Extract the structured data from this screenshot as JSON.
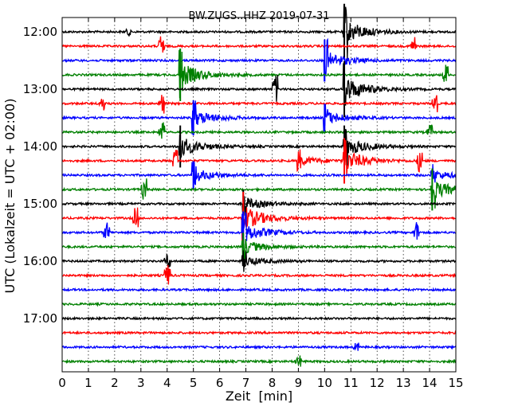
{
  "chart_data": {
    "type": "line",
    "title": "BW.ZUGS..HHZ 2019-07-31",
    "xlabel": "Zeit  [min]",
    "ylabel": "UTC (Lokalzeit = UTC + 02:00)",
    "xlim": [
      0,
      15
    ],
    "x_ticks": [
      "0",
      "1",
      "2",
      "3",
      "4",
      "5",
      "6",
      "7",
      "8",
      "9",
      "10",
      "11",
      "12",
      "13",
      "14",
      "15"
    ],
    "y_ticks": [
      "12:00",
      "13:00",
      "14:00",
      "15:00",
      "16:00",
      "17:00"
    ],
    "grid": true,
    "row_interval_minutes": 15,
    "start_time": "12:00",
    "trace_color_cycle": [
      "#000000",
      "#ff0000",
      "#0000ff",
      "#008000"
    ],
    "traces": [
      {
        "start": "12:00",
        "events": [
          {
            "t": 10.75,
            "amp": 1.6
          },
          {
            "t": 2.5,
            "amp": 0.1
          }
        ]
      },
      {
        "start": "12:15",
        "events": [
          {
            "t": 3.8,
            "amp": 0.35
          },
          {
            "t": 13.4,
            "amp": 0.3
          }
        ]
      },
      {
        "start": "12:30",
        "events": [
          {
            "t": 10.0,
            "amp": 1.2
          }
        ]
      },
      {
        "start": "12:45",
        "events": [
          {
            "t": 4.5,
            "amp": 1.5
          },
          {
            "t": 14.6,
            "amp": 0.3
          }
        ]
      },
      {
        "start": "13:00",
        "events": [
          {
            "t": 8.1,
            "amp": 0.4
          },
          {
            "t": 10.75,
            "amp": 1.6
          }
        ]
      },
      {
        "start": "13:15",
        "events": [
          {
            "t": 1.5,
            "amp": 0.2
          },
          {
            "t": 3.8,
            "amp": 0.3
          },
          {
            "t": 14.2,
            "amp": 0.3
          }
        ]
      },
      {
        "start": "13:30",
        "events": [
          {
            "t": 5.0,
            "amp": 1.0
          },
          {
            "t": 10.0,
            "amp": 0.8
          }
        ]
      },
      {
        "start": "13:45",
        "events": [
          {
            "t": 3.8,
            "amp": 0.3
          },
          {
            "t": 14.0,
            "amp": 0.2
          }
        ]
      },
      {
        "start": "14:00",
        "events": [
          {
            "t": 4.5,
            "amp": 1.2
          },
          {
            "t": 10.75,
            "amp": 1.2
          }
        ]
      },
      {
        "start": "14:15",
        "events": [
          {
            "t": 4.3,
            "amp": 0.35
          },
          {
            "t": 9.0,
            "amp": 0.6
          },
          {
            "t": 10.75,
            "amp": 1.3
          },
          {
            "t": 13.6,
            "amp": 0.3
          }
        ]
      },
      {
        "start": "14:30",
        "events": [
          {
            "t": 5.0,
            "amp": 0.8
          },
          {
            "t": 14.1,
            "amp": 0.6
          }
        ]
      },
      {
        "start": "14:45",
        "events": [
          {
            "t": 3.1,
            "amp": 0.3
          },
          {
            "t": 14.1,
            "amp": 1.2
          }
        ]
      },
      {
        "start": "15:00",
        "events": [
          {
            "t": 6.9,
            "amp": 0.8
          }
        ]
      },
      {
        "start": "15:15",
        "events": [
          {
            "t": 2.8,
            "amp": 0.3
          },
          {
            "t": 6.9,
            "amp": 1.5
          }
        ]
      },
      {
        "start": "15:30",
        "events": [
          {
            "t": 1.7,
            "amp": 0.3
          },
          {
            "t": 6.9,
            "amp": 1.2
          },
          {
            "t": 13.5,
            "amp": 0.3
          }
        ]
      },
      {
        "start": "15:45",
        "events": [
          {
            "t": 6.9,
            "amp": 0.8
          }
        ]
      },
      {
        "start": "16:00",
        "events": [
          {
            "t": 4.0,
            "amp": 0.2
          },
          {
            "t": 6.9,
            "amp": 0.6
          }
        ]
      },
      {
        "start": "16:15",
        "events": [
          {
            "t": 4.0,
            "amp": 0.3
          }
        ]
      },
      {
        "start": "16:30",
        "events": []
      },
      {
        "start": "16:45",
        "events": []
      },
      {
        "start": "17:00",
        "events": []
      },
      {
        "start": "17:15",
        "events": []
      },
      {
        "start": "17:30",
        "events": [
          {
            "t": 11.2,
            "amp": 0.1
          }
        ]
      },
      {
        "start": "17:45",
        "events": [
          {
            "t": 9.0,
            "amp": 0.15
          }
        ]
      }
    ]
  }
}
